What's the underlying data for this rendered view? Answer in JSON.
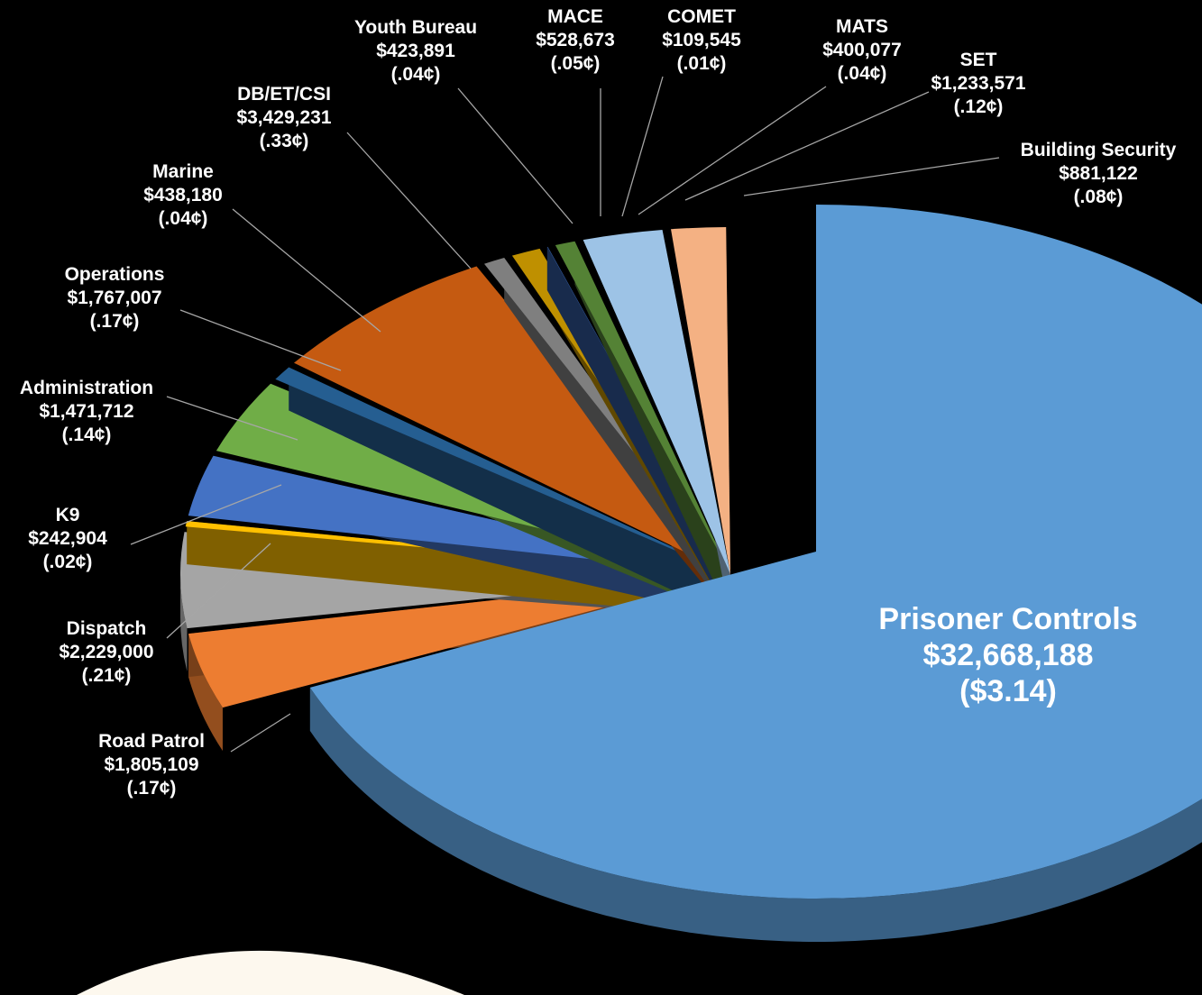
{
  "chart_data": {
    "type": "pie",
    "style": "3d-exploded",
    "legend": "none",
    "slices": [
      {
        "name": "Prisoner Controls",
        "value": 32668188,
        "display": "$32,668,188",
        "per": "($3.14)",
        "color": "#5b9bd5"
      },
      {
        "name": "Road Patrol",
        "value": 1805109,
        "display": "$1,805,109",
        "per": "(.17¢)",
        "color": "#ed7d31"
      },
      {
        "name": "Dispatch",
        "value": 2229000,
        "display": "$2,229,000",
        "per": "(.21¢)",
        "color": "#a5a5a5"
      },
      {
        "name": "K9",
        "value": 242904,
        "display": "$242,904",
        "per": "(.02¢)",
        "color": "#ffc000"
      },
      {
        "name": "Administration",
        "value": 1471712,
        "display": "$1,471,712",
        "per": "(.14¢)",
        "color": "#4472c4"
      },
      {
        "name": "Operations",
        "value": 1767007,
        "display": "$1,767,007",
        "per": "(.17¢)",
        "color": "#70ad47"
      },
      {
        "name": "Marine",
        "value": 438180,
        "display": "$438,180",
        "per": "(.04¢)",
        "color": "#255e91"
      },
      {
        "name": "DB/ET/CSI",
        "value": 3429231,
        "display": "$3,429,231",
        "per": "(.33¢)",
        "color": "#c55a11"
      },
      {
        "name": "Youth Bureau",
        "value": 423891,
        "display": "$423,891",
        "per": "(.04¢)",
        "color": "#7f7f7f"
      },
      {
        "name": "MACE",
        "value": 528673,
        "display": "$528,673",
        "per": "(.05¢)",
        "color": "#bf9000"
      },
      {
        "name": "COMET",
        "value": 109545,
        "display": "$109,545",
        "per": "(.01¢)",
        "color": "#2f5597"
      },
      {
        "name": "MATS",
        "value": 400077,
        "display": "$400,077",
        "per": "(.04¢)",
        "color": "#548235"
      },
      {
        "name": "SET",
        "value": 1233571,
        "display": "$1,233,571",
        "per": "(.12¢)",
        "color": "#9dc3e6"
      },
      {
        "name": "Building Security",
        "value": 881122,
        "display": "$881,122",
        "per": "(.08¢)",
        "color": "#f4b183"
      }
    ]
  },
  "theme": {
    "background": "#000000",
    "text": "#ffffff",
    "leader": "#a6a6a6",
    "corner_shape": "#fdf8ee"
  }
}
